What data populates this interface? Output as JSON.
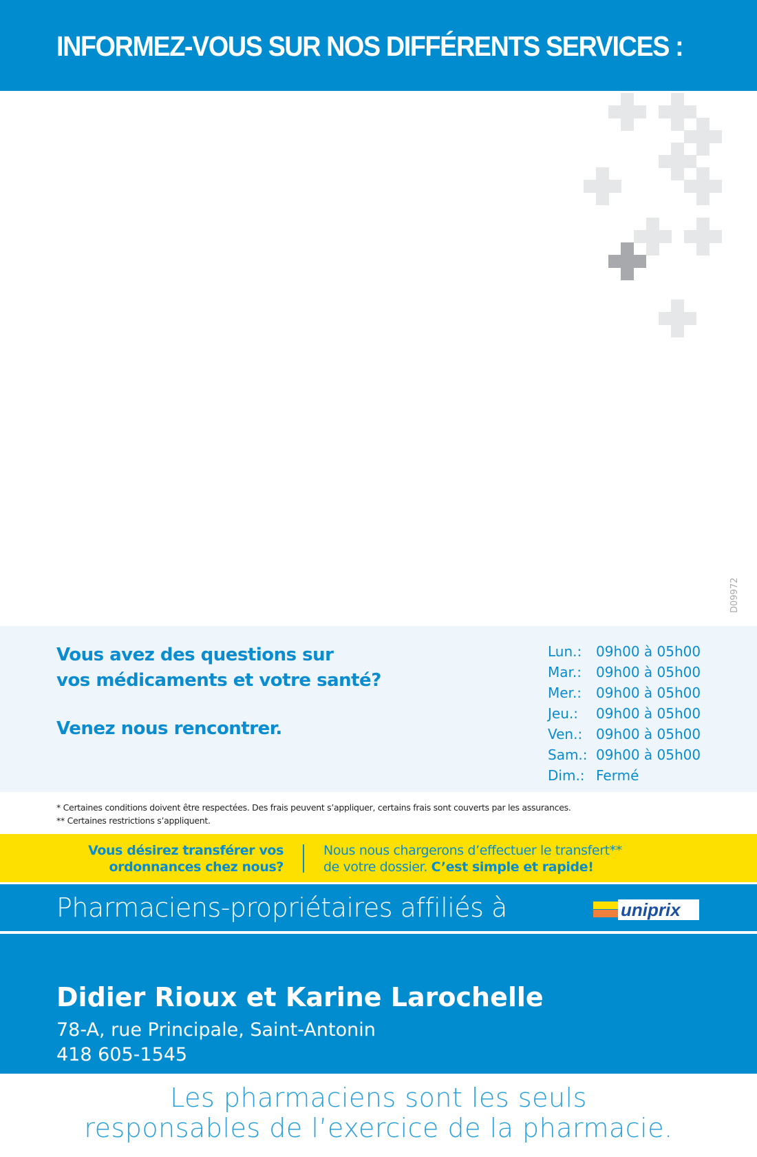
{
  "header": {
    "title": "INFORMEZ-VOUS SUR NOS DIFFÉRENTS SERVICES :"
  },
  "code": "D09972",
  "panel": {
    "question_line1": "Vous avez des questions sur",
    "question_line2": "vos médicaments et votre santé?",
    "invite": "Venez nous rencontrer.",
    "hours": [
      {
        "day": "Lun.:",
        "time": "09h00 à 05h00"
      },
      {
        "day": "Mar.:",
        "time": "09h00 à 05h00"
      },
      {
        "day": "Mer.:",
        "time": "09h00 à 05h00"
      },
      {
        "day": "Jeu.:",
        "time": "09h00 à 05h00"
      },
      {
        "day": "Ven.:",
        "time": "09h00 à 05h00"
      },
      {
        "day": "Sam.:",
        "time": "09h00 à 05h00"
      },
      {
        "day": "Dim.:",
        "time": "Fermé"
      }
    ]
  },
  "notes": {
    "n1": "* Certaines conditions doivent être respectées. Des frais peuvent s’appliquer, certains frais sont couverts par les assurances.",
    "n2": "** Certaines restrictions s’appliquent."
  },
  "transfer": {
    "q1": "Vous désirez transférer vos",
    "q2": "ordonnances chez nous?",
    "a1": "Nous nous chargerons d’effectuer le transfert**",
    "a2": "de votre dossier. ",
    "a2_bold": "C’est simple et rapide!"
  },
  "affil": {
    "text": "Pharmaciens-propriétaires affiliés à",
    "logo": "uniprix"
  },
  "owners": {
    "names": "Didier Rioux et Karine Larochelle",
    "address": "78-A, rue Principale, Saint-Antonin",
    "phone": "418 605-1545"
  },
  "bottom": {
    "line1": "Les pharmaciens sont les seuls",
    "line2": "responsables de l’exercice de la pharmacie."
  },
  "colors": {
    "brand_blue": "#008ccf",
    "yellow": "#fde000",
    "panel": "#eef5fb"
  }
}
